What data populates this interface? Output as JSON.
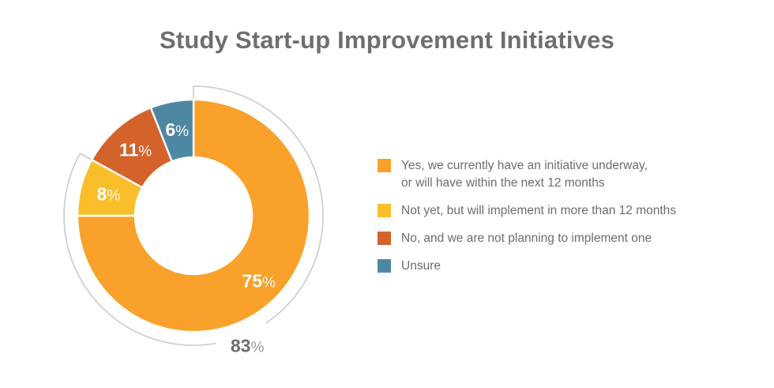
{
  "title": "Study Start-up Improvement Initiatives",
  "colors": {
    "background": "#ffffff",
    "title_text": "#6d6e71",
    "legend_text": "#6b6c70",
    "slice_label_text": "#ffffff",
    "bracket_line": "#c9cacb",
    "bracket_value_text": "#6d6e71",
    "bracket_percent_sign": "#9a9b9e",
    "slice_separator": "#ffffff"
  },
  "chart_data": {
    "type": "pie",
    "subtype": "donut",
    "title": "Study Start-up Improvement Initiatives",
    "start_angle_deg": 0,
    "direction": "clockwise",
    "donut_hole_ratio": 0.505,
    "slice_label_suffix": "%",
    "legend_position": "right",
    "slices": [
      {
        "value": 75,
        "color": "#f9a12b",
        "legend_lines": [
          "Yes, we currently have an initiative underway,",
          "or will have within the next 12 months"
        ]
      },
      {
        "value": 8,
        "color": "#fbbe2b",
        "legend_lines": [
          "Not yet, but will implement in more than 12 months"
        ]
      },
      {
        "value": 11,
        "color": "#d4622b",
        "legend_lines": [
          "No, and we are not planning to implement one"
        ]
      },
      {
        "value": 6,
        "color": "#4e87a2",
        "legend_lines": [
          "Unsure"
        ]
      }
    ],
    "outer_bracket": {
      "value": 83,
      "covers_slices": [
        0,
        1
      ],
      "label_suffix": "%"
    }
  }
}
